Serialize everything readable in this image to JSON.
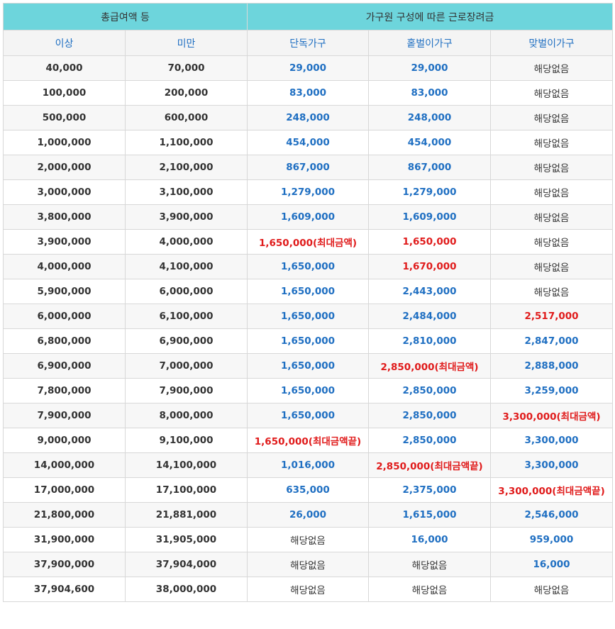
{
  "header": {
    "group_left": "총급여액 등",
    "group_right": "가구원 구성에 따른 근로장려금",
    "col_min": "이상",
    "col_max": "미만",
    "col_single": "단독가구",
    "col_one_earner": "홑벌이가구",
    "col_two_earner": "맞벌이가구"
  },
  "rows": [
    {
      "min": "40,000",
      "max": "70,000",
      "single": "29,000",
      "one": "29,000",
      "two": "해당없음",
      "single_style": "blue",
      "one_style": "blue",
      "two_style": "none"
    },
    {
      "min": "100,000",
      "max": "200,000",
      "single": "83,000",
      "one": "83,000",
      "two": "해당없음",
      "single_style": "blue",
      "one_style": "blue",
      "two_style": "none"
    },
    {
      "min": "500,000",
      "max": "600,000",
      "single": "248,000",
      "one": "248,000",
      "two": "해당없음",
      "single_style": "blue",
      "one_style": "blue",
      "two_style": "none"
    },
    {
      "min": "1,000,000",
      "max": "1,100,000",
      "single": "454,000",
      "one": "454,000",
      "two": "해당없음",
      "single_style": "blue",
      "one_style": "blue",
      "two_style": "none"
    },
    {
      "min": "2,000,000",
      "max": "2,100,000",
      "single": "867,000",
      "one": "867,000",
      "two": "해당없음",
      "single_style": "blue",
      "one_style": "blue",
      "two_style": "none"
    },
    {
      "min": "3,000,000",
      "max": "3,100,000",
      "single": "1,279,000",
      "one": "1,279,000",
      "two": "해당없음",
      "single_style": "blue",
      "one_style": "blue",
      "two_style": "none"
    },
    {
      "min": "3,800,000",
      "max": "3,900,000",
      "single": "1,609,000",
      "one": "1,609,000",
      "two": "해당없음",
      "single_style": "blue",
      "one_style": "blue",
      "two_style": "none"
    },
    {
      "min": "3,900,000",
      "max": "4,000,000",
      "single": "1,650,000(최대금액)",
      "one": "1,650,000",
      "two": "해당없음",
      "single_style": "red",
      "one_style": "red",
      "two_style": "none"
    },
    {
      "min": "4,000,000",
      "max": "4,100,000",
      "single": "1,650,000",
      "one": "1,670,000",
      "two": "해당없음",
      "single_style": "blue",
      "one_style": "red",
      "two_style": "none"
    },
    {
      "min": "5,900,000",
      "max": "6,000,000",
      "single": "1,650,000",
      "one": "2,443,000",
      "two": "해당없음",
      "single_style": "blue",
      "one_style": "blue",
      "two_style": "none"
    },
    {
      "min": "6,000,000",
      "max": "6,100,000",
      "single": "1,650,000",
      "one": "2,484,000",
      "two": "2,517,000",
      "single_style": "blue",
      "one_style": "blue",
      "two_style": "red"
    },
    {
      "min": "6,800,000",
      "max": "6,900,000",
      "single": "1,650,000",
      "one": "2,810,000",
      "two": "2,847,000",
      "single_style": "blue",
      "one_style": "blue",
      "two_style": "blue"
    },
    {
      "min": "6,900,000",
      "max": "7,000,000",
      "single": "1,650,000",
      "one": "2,850,000(최대금액)",
      "two": "2,888,000",
      "single_style": "blue",
      "one_style": "red",
      "two_style": "blue"
    },
    {
      "min": "7,800,000",
      "max": "7,900,000",
      "single": "1,650,000",
      "one": "2,850,000",
      "two": "3,259,000",
      "single_style": "blue",
      "one_style": "blue",
      "two_style": "blue"
    },
    {
      "min": "7,900,000",
      "max": "8,000,000",
      "single": "1,650,000",
      "one": "2,850,000",
      "two": "3,300,000(최대금액)",
      "single_style": "blue",
      "one_style": "blue",
      "two_style": "red"
    },
    {
      "min": "9,000,000",
      "max": "9,100,000",
      "single": "1,650,000(최대금액끝)",
      "one": "2,850,000",
      "two": "3,300,000",
      "single_style": "red",
      "one_style": "blue",
      "two_style": "blue"
    },
    {
      "min": "14,000,000",
      "max": "14,100,000",
      "single": "1,016,000",
      "one": "2,850,000(최대금액끝)",
      "two": "3,300,000",
      "single_style": "blue",
      "one_style": "red",
      "two_style": "blue"
    },
    {
      "min": "17,000,000",
      "max": "17,100,000",
      "single": "635,000",
      "one": "2,375,000",
      "two": "3,300,000(최대금액끝)",
      "single_style": "blue",
      "one_style": "blue",
      "two_style": "red"
    },
    {
      "min": "21,800,000",
      "max": "21,881,000",
      "single": "26,000",
      "one": "1,615,000",
      "two": "2,546,000",
      "single_style": "blue",
      "one_style": "blue",
      "two_style": "blue"
    },
    {
      "min": "31,900,000",
      "max": "31,905,000",
      "single": "해당없음",
      "one": "16,000",
      "two": "959,000",
      "single_style": "none",
      "one_style": "blue",
      "two_style": "blue"
    },
    {
      "min": "37,900,000",
      "max": "37,904,000",
      "single": "해당없음",
      "one": "해당없음",
      "two": "16,000",
      "single_style": "none",
      "one_style": "none",
      "two_style": "blue"
    },
    {
      "min": "37,904,600",
      "max": "38,000,000",
      "single": "해당없음",
      "one": "해당없음",
      "two": "해당없음",
      "single_style": "none",
      "one_style": "none",
      "two_style": "none"
    }
  ]
}
